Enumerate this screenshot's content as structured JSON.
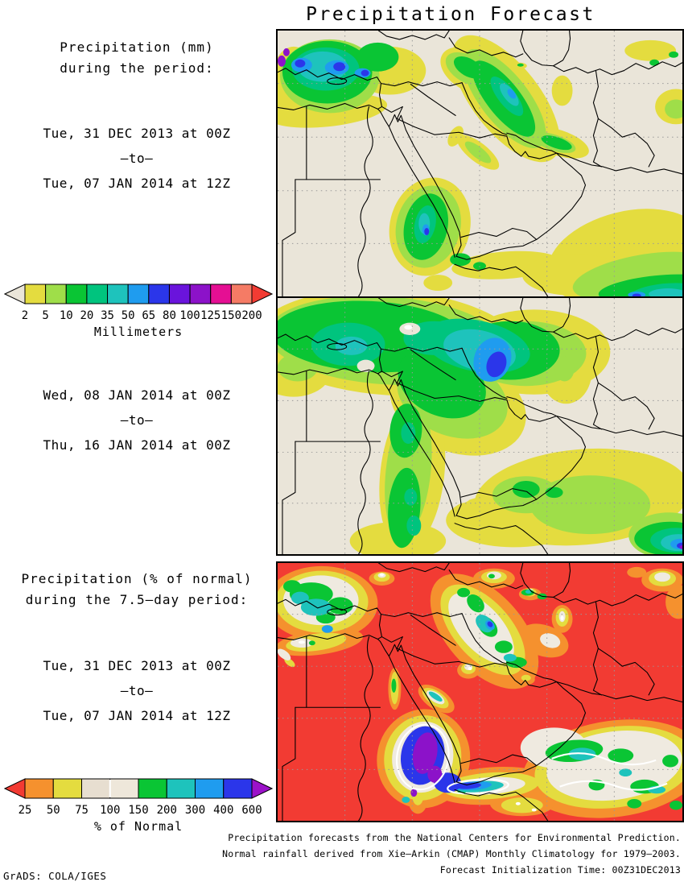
{
  "title": "Precipitation Forecast",
  "left_panel": {
    "mm_heading": {
      "line1": "Precipitation (mm)",
      "line2": "during the period:"
    },
    "period1": {
      "start": "Tue, 31 DEC 2013 at 00Z",
      "to": "—to—",
      "end": "Tue, 07 JAN 2014 at 12Z"
    },
    "period2": {
      "start": "Wed, 08 JAN 2014 at 00Z",
      "to": "—to—",
      "end": "Thu, 16 JAN 2014 at 00Z"
    },
    "pct_heading": {
      "line1": "Precipitation (% of normal)",
      "line2": "during the 7.5—day period:"
    },
    "period3": {
      "start": "Tue, 31 DEC 2013 at 00Z",
      "to": "—to—",
      "end": "Tue, 07 JAN 2014 at 12Z"
    }
  },
  "colorbar_mm": {
    "ticks": [
      "2",
      "5",
      "10",
      "20",
      "35",
      "50",
      "65",
      "80",
      "100",
      "125",
      "150",
      "200"
    ],
    "unit_label": "Millimeters",
    "left_arrow_color": "#EAE5D9",
    "right_arrow_color": "#F23B33",
    "segment_colors": [
      "#E4DC3F",
      "#9FDE49",
      "#0AC534",
      "#00C47E",
      "#1EC3BC",
      "#1F9CEF",
      "#2B36EA",
      "#6A14DC",
      "#8C12C9",
      "#E50F93",
      "#F57B65"
    ]
  },
  "colorbar_pct": {
    "ticks": [
      "25",
      "50",
      "75",
      "100",
      "150",
      "200",
      "300",
      "400",
      "600"
    ],
    "unit_label": "% of Normal",
    "left_arrow_color": "#F23B33",
    "right_arrow_color": "#9B12C9",
    "segment_colors": [
      "#F5912E",
      "#E4DC3F",
      "#E7DED0",
      "#EEE7DA",
      "#0AC534",
      "#1EC3BC",
      "#1F9CEF",
      "#2B36EA"
    ],
    "white_divider_tick_index": 3
  },
  "footer": {
    "line1": "Precipitation forecasts from the National Centers for Environmental Prediction.",
    "line2": "Normal rainfall derived from Xie—Arkin (CMAP) Monthly Climatology for 1979—2003.",
    "line3": "Forecast Initialization Time: 00Z31DEC2013",
    "credit": "GrADS: COLA/IGES"
  },
  "palette": {
    "land_beige": "#EAE5D9",
    "yellow": "#E4DC3F",
    "yellow_green": "#9FDE49",
    "green": "#0AC534",
    "spring_green": "#00C47E",
    "cyan": "#1EC3BC",
    "light_blue": "#1F9CEF",
    "blue": "#2B36EA",
    "indigo": "#6A14DC",
    "purple": "#8C12C9",
    "magenta": "#E50F93",
    "salmon": "#F57B65",
    "red": "#F23B33",
    "orange": "#F5912E",
    "near_white": "#EFEAE0"
  }
}
